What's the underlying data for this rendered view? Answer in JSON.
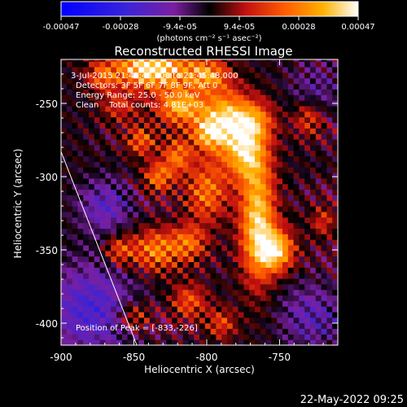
{
  "colorbar": {
    "ticks": [
      "-0.00047",
      "-0.00028",
      "-9.4e-05",
      "9.4e-05",
      "0.00028",
      "0.00047"
    ],
    "units": "(photons cm⁻² s⁻¹ asec⁻²)",
    "range": [
      -0.00047,
      0.00047
    ]
  },
  "chart_data": {
    "type": "heatmap",
    "title": "Reconstructed RHESSI Image",
    "xlabel": "Heliocentric X (arcsec)",
    "ylabel": "Heliocentric Y (arcsec)",
    "xlim": [
      -900,
      -710
    ],
    "ylim": [
      -415,
      -220
    ],
    "xticks": [
      "-900",
      "-850",
      "-800",
      "-750"
    ],
    "yticks": [
      "-250",
      "-300",
      "-350",
      "-400"
    ],
    "xtick_values": [
      -900,
      -850,
      -800,
      -750
    ],
    "ytick_values": [
      -250,
      -300,
      -350,
      -400
    ],
    "limb_line": {
      "x": [
        -900,
        -848
      ],
      "y": [
        -283,
        -415
      ]
    },
    "peak": {
      "x": -833,
      "y": -226
    },
    "annotations": [
      "3-Jul-2015 21:42:48.000 to 21:45:48.000",
      "Detectors: 3F 5F 6F 7F 8F 9F, Att 0",
      "Energy Range: 25.0 - 50.0 keV",
      "Clean    Total counts: 4.81E+03",
      "Position of Peak = [-833,-226]"
    ]
  },
  "footer": {
    "timestamp": "22-May-2022 09:25"
  }
}
